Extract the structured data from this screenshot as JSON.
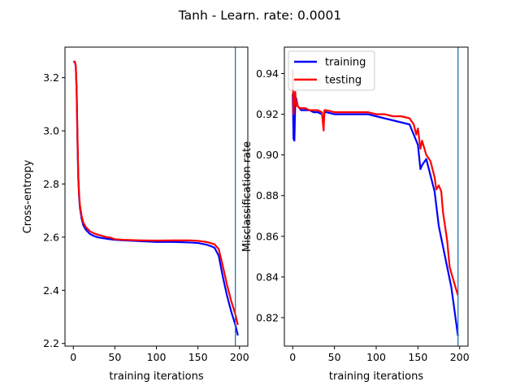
{
  "figure": {
    "suptitle": "Tanh - Learn. rate: 0.0001"
  },
  "chart_data": [
    {
      "type": "line",
      "xlabel": "training iterations",
      "ylabel": "Cross-entropy",
      "xlim": [
        -10,
        210
      ],
      "ylim": [
        2.19,
        3.315
      ],
      "xticks": [
        0,
        50,
        100,
        150,
        200
      ],
      "yticks": [
        2.2,
        2.4,
        2.6,
        2.8,
        3.0,
        3.2
      ],
      "ytick_decimals": 1,
      "vline_x": 195,
      "grid": false,
      "series": [
        {
          "color": "#0000ff",
          "x": [
            0,
            2,
            3,
            4,
            5,
            6,
            7,
            8,
            10,
            12,
            15,
            20,
            25,
            30,
            40,
            50,
            60,
            80,
            100,
            120,
            140,
            150,
            160,
            165,
            170,
            175,
            180,
            185,
            190,
            195,
            198
          ],
          "y": [
            3.26,
            3.26,
            3.24,
            3.15,
            2.97,
            2.82,
            2.75,
            2.71,
            2.67,
            2.645,
            2.628,
            2.612,
            2.604,
            2.599,
            2.594,
            2.59,
            2.588,
            2.585,
            2.582,
            2.582,
            2.58,
            2.578,
            2.572,
            2.567,
            2.56,
            2.53,
            2.45,
            2.38,
            2.32,
            2.27,
            2.23
          ]
        },
        {
          "color": "#ff0000",
          "x": [
            0,
            2,
            3,
            4,
            5,
            6,
            7,
            8,
            10,
            12,
            15,
            20,
            25,
            30,
            40,
            45,
            50,
            60,
            80,
            100,
            120,
            140,
            150,
            160,
            165,
            170,
            175,
            180,
            185,
            190,
            195,
            198
          ],
          "y": [
            3.26,
            3.26,
            3.245,
            3.16,
            2.98,
            2.83,
            2.76,
            2.72,
            2.68,
            2.655,
            2.638,
            2.622,
            2.614,
            2.609,
            2.6,
            2.598,
            2.592,
            2.59,
            2.588,
            2.587,
            2.588,
            2.588,
            2.586,
            2.582,
            2.578,
            2.573,
            2.555,
            2.49,
            2.42,
            2.36,
            2.31,
            2.27
          ]
        }
      ]
    },
    {
      "type": "line",
      "xlabel": "training iterations",
      "ylabel": "Misclassification rate",
      "xlim": [
        -10,
        210
      ],
      "ylim": [
        0.806,
        0.953
      ],
      "xticks": [
        0,
        50,
        100,
        150,
        200
      ],
      "yticks": [
        0.82,
        0.84,
        0.86,
        0.88,
        0.9,
        0.92,
        0.94
      ],
      "ytick_decimals": 2,
      "vline_x": 198,
      "grid": false,
      "legend": {
        "position": "upper-left",
        "entries": [
          {
            "label": "training",
            "color": "#0000ff"
          },
          {
            "label": "testing",
            "color": "#ff0000"
          }
        ]
      },
      "series": [
        {
          "name": "training",
          "color": "#0000ff",
          "x": [
            0,
            1,
            2,
            3,
            4,
            5,
            6,
            8,
            10,
            15,
            20,
            25,
            30,
            35,
            37,
            38,
            40,
            50,
            60,
            70,
            80,
            90,
            100,
            110,
            120,
            130,
            140,
            145,
            150,
            153,
            155,
            160,
            165,
            170,
            175,
            180,
            185,
            190,
            195,
            198
          ],
          "y": [
            0.93,
            0.908,
            0.907,
            0.925,
            0.928,
            0.926,
            0.924,
            0.923,
            0.922,
            0.922,
            0.922,
            0.921,
            0.921,
            0.92,
            0.916,
            0.921,
            0.921,
            0.92,
            0.92,
            0.92,
            0.92,
            0.92,
            0.919,
            0.918,
            0.917,
            0.916,
            0.915,
            0.91,
            0.905,
            0.893,
            0.895,
            0.898,
            0.89,
            0.882,
            0.865,
            0.855,
            0.845,
            0.835,
            0.82,
            0.811
          ]
        },
        {
          "name": "testing",
          "color": "#ff0000",
          "x": [
            0,
            1,
            2,
            3,
            4,
            5,
            6,
            8,
            10,
            15,
            20,
            25,
            30,
            35,
            37,
            38,
            40,
            50,
            60,
            70,
            80,
            90,
            100,
            110,
            120,
            130,
            140,
            145,
            148,
            150,
            153,
            155,
            160,
            165,
            170,
            172,
            175,
            178,
            180,
            185,
            188,
            190,
            195,
            198
          ],
          "y": [
            0.942,
            0.92,
            0.929,
            0.931,
            0.924,
            0.926,
            0.924,
            0.923,
            0.923,
            0.923,
            0.922,
            0.922,
            0.922,
            0.921,
            0.912,
            0.922,
            0.922,
            0.921,
            0.921,
            0.921,
            0.921,
            0.921,
            0.92,
            0.92,
            0.919,
            0.919,
            0.918,
            0.915,
            0.91,
            0.913,
            0.903,
            0.907,
            0.9,
            0.897,
            0.889,
            0.883,
            0.885,
            0.882,
            0.872,
            0.858,
            0.845,
            0.842,
            0.835,
            0.831
          ]
        }
      ]
    }
  ]
}
